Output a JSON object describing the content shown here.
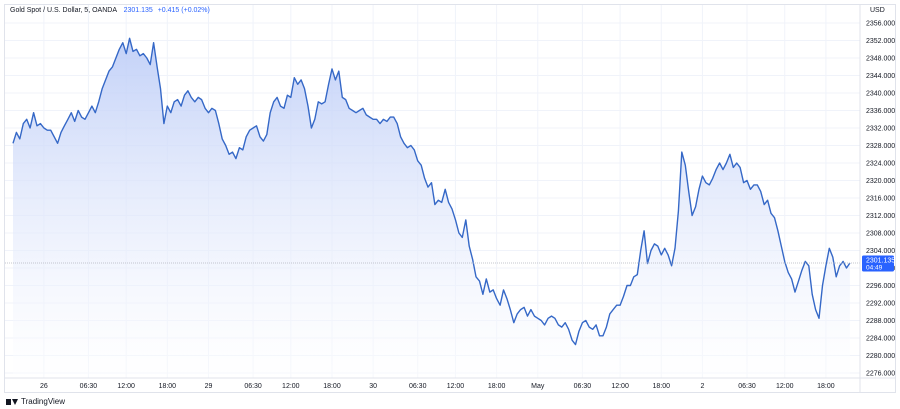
{
  "header": {
    "symbol": "Gold Spot / U.S. Dollar, 5, OANDA",
    "last_price": "2301.135",
    "change": "+0.415 (+0.02%)",
    "currency": "USD"
  },
  "price_label": {
    "price": "2301.135",
    "countdown": "04:49"
  },
  "brand": {
    "name": "TradingView"
  },
  "colors": {
    "line": "#3568c7",
    "fill_top": "#bcccf7",
    "fill_bottom": "#ffffff",
    "price_tag": "#2962ff",
    "grid": "#f0f3fa",
    "axis_text": "#131722"
  },
  "chart_data": {
    "type": "area",
    "title": "Gold Spot / U.S. Dollar, 5, OANDA",
    "xlabel": "",
    "ylabel": "",
    "ylim": [
      2274,
      2358
    ],
    "grid": true,
    "y_ticks": [
      2356,
      2352,
      2348,
      2344,
      2340,
      2336,
      2332,
      2328,
      2324,
      2320,
      2316,
      2312,
      2308,
      2304,
      2300,
      2296,
      2292,
      2288,
      2284,
      2280,
      2276
    ],
    "y_tick_labels": [
      "2356.000",
      "2352.000",
      "2348.000",
      "2344.000",
      "2340.000",
      "2336.000",
      "2332.000",
      "2328.000",
      "2324.000",
      "2320.000",
      "2316.000",
      "2312.000",
      "2308.000",
      "2304.000",
      "2300.000",
      "2296.000",
      "2292.000",
      "2288.000",
      "2284.000",
      "2280.000",
      "2276.000"
    ],
    "x_ticks": [
      {
        "x": 1.0,
        "label": "26"
      },
      {
        "x": 7.5,
        "label": "06:30"
      },
      {
        "x": 13.0,
        "label": "12:00"
      },
      {
        "x": 19.0,
        "label": "18:00"
      },
      {
        "x": 25.0,
        "label": "29"
      },
      {
        "x": 31.5,
        "label": "06:30"
      },
      {
        "x": 37.0,
        "label": "12:00"
      },
      {
        "x": 43.0,
        "label": "18:00"
      },
      {
        "x": 49.0,
        "label": "30"
      },
      {
        "x": 55.5,
        "label": "06:30"
      },
      {
        "x": 61.0,
        "label": "12:00"
      },
      {
        "x": 67.0,
        "label": "18:00"
      },
      {
        "x": 73.0,
        "label": "May"
      },
      {
        "x": 79.5,
        "label": "06:30"
      },
      {
        "x": 85.0,
        "label": "12:00"
      },
      {
        "x": 91.0,
        "label": "18:00"
      },
      {
        "x": 97.0,
        "label": "2"
      },
      {
        "x": 103.5,
        "label": "06:30"
      },
      {
        "x": 109.0,
        "label": "12:00"
      },
      {
        "x": 115.0,
        "label": "18:00"
      }
    ],
    "xlim": [
      -3.5,
      118.5
    ],
    "current_price": 2301.135,
    "series": [
      {
        "values": [
          [
            -3.5,
            2328.5
          ],
          [
            -3.0,
            2331
          ],
          [
            -2.5,
            2329.5
          ],
          [
            -2.0,
            2333
          ],
          [
            -1.5,
            2334
          ],
          [
            -1.0,
            2332
          ],
          [
            -0.5,
            2335.5
          ],
          [
            0.0,
            2332.5
          ],
          [
            0.5,
            2333
          ],
          [
            1.0,
            2332
          ],
          [
            1.5,
            2331.5
          ],
          [
            2.0,
            2331.5
          ],
          [
            2.5,
            2330
          ],
          [
            3.0,
            2328.5
          ],
          [
            3.5,
            2331
          ],
          [
            4.0,
            2332.5
          ],
          [
            4.5,
            2334
          ],
          [
            5.0,
            2335.5
          ],
          [
            5.5,
            2333.5
          ],
          [
            6.0,
            2336
          ],
          [
            6.5,
            2334.5
          ],
          [
            7.0,
            2334
          ],
          [
            7.5,
            2335.5
          ],
          [
            8.0,
            2337
          ],
          [
            8.5,
            2335.5
          ],
          [
            9.0,
            2338
          ],
          [
            9.5,
            2341
          ],
          [
            10.0,
            2343
          ],
          [
            10.5,
            2345
          ],
          [
            11.0,
            2346
          ],
          [
            11.5,
            2348
          ],
          [
            12.0,
            2350
          ],
          [
            12.5,
            2351.5
          ],
          [
            13.0,
            2349
          ],
          [
            13.5,
            2352.5
          ],
          [
            14.0,
            2349.5
          ],
          [
            14.5,
            2350
          ],
          [
            15.0,
            2348.5
          ],
          [
            15.5,
            2349
          ],
          [
            16.0,
            2348
          ],
          [
            16.5,
            2346.5
          ],
          [
            17.0,
            2351.5
          ],
          [
            17.5,
            2346
          ],
          [
            18.0,
            2341
          ],
          [
            18.5,
            2333
          ],
          [
            19.0,
            2337
          ],
          [
            19.5,
            2335.5
          ],
          [
            20.0,
            2338
          ],
          [
            20.5,
            2338.5
          ],
          [
            21.0,
            2337
          ],
          [
            21.5,
            2339.5
          ],
          [
            22.0,
            2340.5
          ],
          [
            22.5,
            2339
          ],
          [
            23.0,
            2338
          ],
          [
            23.5,
            2339
          ],
          [
            24.0,
            2338.5
          ],
          [
            24.5,
            2336.5
          ],
          [
            25.0,
            2335.5
          ],
          [
            25.5,
            2336.5
          ],
          [
            26.0,
            2336
          ],
          [
            26.5,
            2333
          ],
          [
            27.0,
            2329.5
          ],
          [
            27.5,
            2328
          ],
          [
            28.0,
            2326
          ],
          [
            28.5,
            2326.5
          ],
          [
            29.0,
            2325
          ],
          [
            29.5,
            2327.5
          ],
          [
            30.0,
            2327
          ],
          [
            30.5,
            2330
          ],
          [
            31.0,
            2331.5
          ],
          [
            31.5,
            2332
          ],
          [
            32.0,
            2332.5
          ],
          [
            32.5,
            2330
          ],
          [
            33.0,
            2329
          ],
          [
            33.5,
            2330.5
          ],
          [
            34.0,
            2335.5
          ],
          [
            34.5,
            2338
          ],
          [
            35.0,
            2339
          ],
          [
            35.5,
            2337
          ],
          [
            36.0,
            2336.5
          ],
          [
            36.5,
            2339.5
          ],
          [
            37.0,
            2339
          ],
          [
            37.5,
            2343.5
          ],
          [
            38.0,
            2342
          ],
          [
            38.5,
            2343
          ],
          [
            39.0,
            2341
          ],
          [
            39.5,
            2337
          ],
          [
            40.0,
            2332
          ],
          [
            40.5,
            2334
          ],
          [
            41.0,
            2338
          ],
          [
            41.5,
            2337.5
          ],
          [
            42.0,
            2338
          ],
          [
            42.5,
            2342
          ],
          [
            43.0,
            2345.5
          ],
          [
            43.5,
            2343
          ],
          [
            44.0,
            2345
          ],
          [
            44.5,
            2339
          ],
          [
            45.0,
            2338.5
          ],
          [
            45.5,
            2336.5
          ],
          [
            46.0,
            2336
          ],
          [
            46.5,
            2335.5
          ],
          [
            47.0,
            2336
          ],
          [
            47.5,
            2336.5
          ],
          [
            48.0,
            2335
          ],
          [
            48.5,
            2334.5
          ],
          [
            49.0,
            2334
          ],
          [
            49.5,
            2334
          ],
          [
            50.0,
            2333
          ],
          [
            50.5,
            2334
          ],
          [
            51.0,
            2333.5
          ],
          [
            51.5,
            2334.5
          ],
          [
            52.0,
            2334.5
          ],
          [
            52.5,
            2333
          ],
          [
            53.0,
            2330
          ],
          [
            53.5,
            2328.5
          ],
          [
            54.0,
            2327.5
          ],
          [
            54.5,
            2328
          ],
          [
            55.0,
            2327
          ],
          [
            55.5,
            2324.5
          ],
          [
            56.0,
            2323.5
          ],
          [
            56.5,
            2320.5
          ],
          [
            57.0,
            2318.5
          ],
          [
            57.5,
            2319.5
          ],
          [
            58.0,
            2314.5
          ],
          [
            58.5,
            2315.5
          ],
          [
            59.0,
            2315
          ],
          [
            59.5,
            2318
          ],
          [
            60.0,
            2315
          ],
          [
            60.5,
            2313.5
          ],
          [
            61.0,
            2311
          ],
          [
            61.5,
            2308
          ],
          [
            62.0,
            2307
          ],
          [
            62.5,
            2311
          ],
          [
            63.0,
            2305
          ],
          [
            63.5,
            2302
          ],
          [
            64.0,
            2298
          ],
          [
            64.5,
            2297
          ],
          [
            65.0,
            2294
          ],
          [
            65.5,
            2297.5
          ],
          [
            66.0,
            2294.5
          ],
          [
            66.5,
            2295
          ],
          [
            67.0,
            2293
          ],
          [
            67.5,
            2291.5
          ],
          [
            68.0,
            2295
          ],
          [
            68.5,
            2293
          ],
          [
            69.0,
            2290.5
          ],
          [
            69.5,
            2287.5
          ],
          [
            70.0,
            2289.5
          ],
          [
            70.5,
            2290.5
          ],
          [
            71.0,
            2291
          ],
          [
            71.5,
            2289
          ],
          [
            72.0,
            2290.5
          ],
          [
            72.5,
            2289
          ],
          [
            73.0,
            2288.5
          ],
          [
            73.5,
            2288
          ],
          [
            74.0,
            2287
          ],
          [
            74.5,
            2288.5
          ],
          [
            75.0,
            2289
          ],
          [
            75.5,
            2288.5
          ],
          [
            76.0,
            2287
          ],
          [
            76.5,
            2286.5
          ],
          [
            77.0,
            2287.5
          ],
          [
            77.5,
            2286
          ],
          [
            78.0,
            2283.5
          ],
          [
            78.5,
            2282.5
          ],
          [
            79.0,
            2285.5
          ],
          [
            79.5,
            2287.5
          ],
          [
            80.0,
            2288
          ],
          [
            80.5,
            2286.5
          ],
          [
            81.0,
            2286
          ],
          [
            81.5,
            2287
          ],
          [
            82.0,
            2284.5
          ],
          [
            82.5,
            2284.5
          ],
          [
            83.0,
            2286.5
          ],
          [
            83.5,
            2289.5
          ],
          [
            84.0,
            2290.5
          ],
          [
            84.5,
            2291.5
          ],
          [
            85.0,
            2291.5
          ],
          [
            85.5,
            2293.5
          ],
          [
            86.0,
            2296
          ],
          [
            86.5,
            2296
          ],
          [
            87.0,
            2298
          ],
          [
            87.5,
            2298.5
          ],
          [
            88.0,
            2304
          ],
          [
            88.5,
            2308.5
          ],
          [
            89.0,
            2301
          ],
          [
            89.5,
            2304
          ],
          [
            90.0,
            2305.5
          ],
          [
            90.5,
            2305
          ],
          [
            91.0,
            2303
          ],
          [
            91.5,
            2304.5
          ],
          [
            92.0,
            2303
          ],
          [
            92.5,
            2300.5
          ],
          [
            93.0,
            2304.5
          ],
          [
            93.5,
            2313
          ],
          [
            94.0,
            2326.5
          ],
          [
            94.5,
            2323.5
          ],
          [
            95.0,
            2317.5
          ],
          [
            95.5,
            2312
          ],
          [
            96.0,
            2314
          ],
          [
            96.5,
            2318
          ],
          [
            97.0,
            2321
          ],
          [
            97.5,
            2319.5
          ],
          [
            98.0,
            2319
          ],
          [
            98.5,
            2320.5
          ],
          [
            99.0,
            2322.5
          ],
          [
            99.5,
            2324
          ],
          [
            100.0,
            2322.5
          ],
          [
            100.5,
            2324
          ],
          [
            101.0,
            2326
          ],
          [
            101.5,
            2323
          ],
          [
            102.0,
            2324
          ],
          [
            102.5,
            2323
          ],
          [
            103.0,
            2319.5
          ],
          [
            103.5,
            2320
          ],
          [
            104.0,
            2318
          ],
          [
            104.5,
            2319
          ],
          [
            105.0,
            2319
          ],
          [
            105.5,
            2317.5
          ],
          [
            106.0,
            2314.5
          ],
          [
            106.5,
            2315.5
          ],
          [
            107.0,
            2312.5
          ],
          [
            107.5,
            2311.5
          ],
          [
            108.0,
            2308.5
          ],
          [
            108.5,
            2305
          ],
          [
            109.0,
            2301.5
          ],
          [
            109.5,
            2299
          ],
          [
            110.0,
            2297.5
          ],
          [
            110.5,
            2294.5
          ],
          [
            111.0,
            2297
          ],
          [
            111.5,
            2299.5
          ],
          [
            112.0,
            2301.5
          ],
          [
            112.5,
            2300.5
          ],
          [
            113.0,
            2294
          ],
          [
            113.5,
            2290.5
          ],
          [
            114.0,
            2288.5
          ],
          [
            114.5,
            2296
          ],
          [
            115.0,
            2300.5
          ],
          [
            115.5,
            2304.5
          ],
          [
            116.0,
            2302.5
          ],
          [
            116.5,
            2298
          ],
          [
            117.0,
            2300.5
          ],
          [
            117.5,
            2301.5
          ],
          [
            118.0,
            2300
          ],
          [
            118.5,
            2301.135
          ]
        ]
      }
    ]
  }
}
